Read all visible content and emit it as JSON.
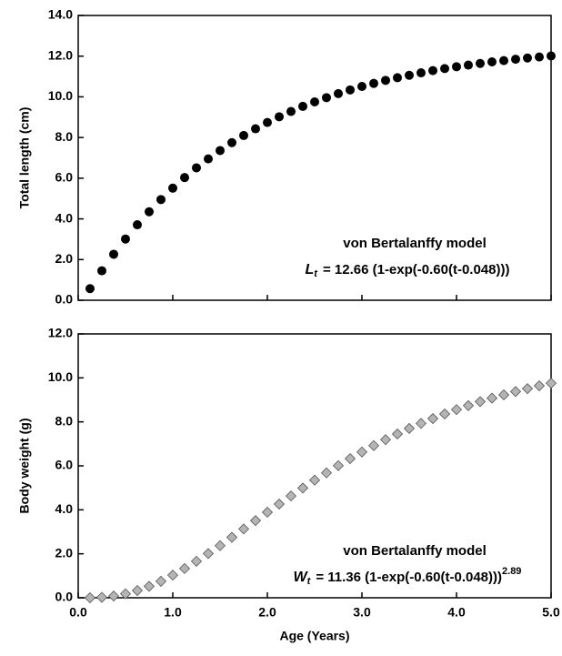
{
  "chart_data": [
    {
      "type": "scatter",
      "y_label": "Total length (cm)",
      "x": [
        0.125,
        0.25,
        0.375,
        0.5,
        0.625,
        0.75,
        0.875,
        1.0,
        1.125,
        1.25,
        1.375,
        1.5,
        1.625,
        1.75,
        1.875,
        2.0,
        2.125,
        2.25,
        2.375,
        2.5,
        2.625,
        2.75,
        2.875,
        3.0,
        3.125,
        3.25,
        3.375,
        3.5,
        3.625,
        3.75,
        3.875,
        4.0,
        4.125,
        4.25,
        4.375,
        4.5,
        4.625,
        4.75,
        4.875,
        5.0
      ],
      "series": [
        {
          "color": "#000000",
          "marker": "circle",
          "values": [
            0.57,
            1.45,
            2.26,
            3.01,
            3.71,
            4.35,
            4.95,
            5.51,
            6.03,
            6.51,
            6.95,
            7.36,
            7.75,
            8.1,
            8.43,
            8.74,
            9.02,
            9.28,
            9.53,
            9.75,
            9.96,
            10.16,
            10.34,
            10.51,
            10.66,
            10.81,
            10.94,
            11.06,
            11.18,
            11.29,
            11.39,
            11.48,
            11.56,
            11.64,
            11.72,
            11.78,
            11.85,
            11.91,
            11.96,
            12.01
          ]
        }
      ],
      "xlim": [
        0,
        5
      ],
      "ylim": [
        0,
        14
      ],
      "xticks": [
        0,
        1,
        2,
        3,
        4,
        5
      ],
      "yticks": [
        {
          "value": 0,
          "label": "0.0"
        },
        {
          "value": 2,
          "label": "2.0"
        },
        {
          "value": 4,
          "label": "4.0"
        },
        {
          "value": 6,
          "label": "6.0"
        },
        {
          "value": 8,
          "label": "8.0"
        },
        {
          "value": 10,
          "label": "10.0"
        },
        {
          "value": 12,
          "label": "12.0"
        },
        {
          "value": 14,
          "label": "14.0"
        }
      ],
      "annotation": {
        "text": "von Bertalanffy model",
        "equation": {
          "var": "L",
          "sub": "t",
          "body": "= 12.66 (1-exp(-0.60(t-0.048)))"
        }
      }
    },
    {
      "type": "scatter",
      "y_label": "Body weight (g)",
      "x_label": "Age (Years)",
      "x": [
        0.125,
        0.25,
        0.375,
        0.5,
        0.625,
        0.75,
        0.875,
        1.0,
        1.125,
        1.25,
        1.375,
        1.5,
        1.625,
        1.75,
        1.875,
        2.0,
        2.125,
        2.25,
        2.375,
        2.5,
        2.625,
        2.75,
        2.875,
        3.0,
        3.125,
        3.25,
        3.375,
        3.5,
        3.625,
        3.75,
        3.875,
        4.0,
        4.125,
        4.25,
        4.375,
        4.5,
        4.625,
        4.75,
        4.875,
        5.0
      ],
      "series": [
        {
          "color": "#b4b4b4",
          "marker": "diamond",
          "values": [
            0.0,
            0.02,
            0.08,
            0.18,
            0.33,
            0.52,
            0.75,
            1.03,
            1.33,
            1.66,
            2.01,
            2.37,
            2.75,
            3.13,
            3.51,
            3.89,
            4.26,
            4.63,
            4.99,
            5.35,
            5.68,
            6.01,
            6.33,
            6.63,
            6.92,
            7.19,
            7.45,
            7.7,
            7.93,
            8.15,
            8.36,
            8.56,
            8.74,
            8.92,
            9.08,
            9.23,
            9.38,
            9.51,
            9.64,
            9.76
          ]
        }
      ],
      "xlim": [
        0,
        5
      ],
      "ylim": [
        0,
        12
      ],
      "xticks": [
        {
          "value": 0,
          "label": "0.0"
        },
        {
          "value": 1,
          "label": "1.0"
        },
        {
          "value": 2,
          "label": "2.0"
        },
        {
          "value": 3,
          "label": "3.0"
        },
        {
          "value": 4,
          "label": "4.0"
        },
        {
          "value": 5,
          "label": "5.0"
        }
      ],
      "yticks": [
        {
          "value": 0,
          "label": "0.0"
        },
        {
          "value": 2,
          "label": "2.0"
        },
        {
          "value": 4,
          "label": "4.0"
        },
        {
          "value": 6,
          "label": "6.0"
        },
        {
          "value": 8,
          "label": "8.0"
        },
        {
          "value": 10,
          "label": "10.0"
        },
        {
          "value": 12,
          "label": "12.0"
        }
      ],
      "annotation": {
        "text": "von Bertalanffy model",
        "equation": {
          "var": "W",
          "sub": "t",
          "body": "= 11.36 (1-exp(-0.60(t-0.048)))",
          "sup": "2.89"
        }
      }
    }
  ]
}
